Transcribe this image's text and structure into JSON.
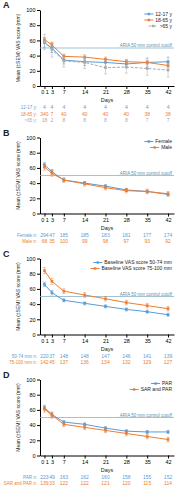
{
  "chart_data": [
    {
      "type": "line",
      "title": "A",
      "xlabel": "Days",
      "ylabel": "Mean (±SEM) VAS score (mm)",
      "x": [
        0.5,
        3,
        7,
        14,
        21,
        28,
        35,
        42
      ],
      "xlim": [
        -1,
        44
      ],
      "xticks": [
        {
          "value": 0.5,
          "label": "0 1"
        },
        3,
        7,
        14,
        21,
        28,
        35,
        42
      ],
      "ylim": [
        0,
        100
      ],
      "yticks": [
        0,
        20,
        40,
        60,
        80,
        100
      ],
      "grid": false,
      "legend": "upper right",
      "annotations": [
        {
          "text": "ARIA 50 mm control cutoff",
          "y": 50
        }
      ],
      "series": [
        {
          "name": "12-17 y",
          "color": "#5b9bd5",
          "line_style": "solid",
          "marker": "square",
          "values": [
            57,
            50,
            34,
            32,
            31,
            29,
            31,
            32
          ],
          "errors": [
            6,
            6,
            5,
            5,
            5,
            5,
            6,
            6
          ],
          "n_label": "12-17 y:",
          "n": [
            4,
            4,
            4,
            4,
            4,
            4,
            4,
            4
          ]
        },
        {
          "name": "18-65 y",
          "color": "#ed7d31",
          "line_style": "solid",
          "marker": "square",
          "values": [
            61,
            54,
            39,
            38,
            35,
            32,
            31,
            27
          ],
          "errors": [
            3,
            3,
            3,
            3,
            3,
            3,
            3,
            3
          ],
          "n_label": "18-65 y:",
          "n": [
            340,
            7,
            40,
            40,
            40,
            40,
            38,
            38
          ]
        },
        {
          "name": ">65 y",
          "color": "#aaaaaa",
          "line_style": "dashed",
          "marker": "square",
          "values": [
            58,
            48,
            33,
            31,
            24,
            25,
            23,
            21
          ],
          "errors": [
            10,
            10,
            8,
            8,
            8,
            8,
            9,
            9
          ],
          "n_label": ">65 y:",
          "n": [
            18,
            2,
            8,
            8,
            8,
            8,
            7,
            7
          ]
        }
      ]
    },
    {
      "type": "line",
      "title": "B",
      "xlabel": "Days",
      "ylabel": "Mean (±SEM) VAS score (mm)",
      "x": [
        0.5,
        3,
        7,
        14,
        21,
        28,
        35,
        42
      ],
      "xlim": [
        -1,
        44
      ],
      "xticks": [
        {
          "value": 0.5,
          "label": "0 1"
        },
        3,
        7,
        14,
        21,
        28,
        35,
        42
      ],
      "ylim": [
        0,
        100
      ],
      "yticks": [
        0,
        20,
        40,
        60,
        80,
        100
      ],
      "grid": false,
      "legend": "upper right",
      "annotations": [
        {
          "text": "ARIA 50 mm control cutoff",
          "y": 50
        }
      ],
      "series": [
        {
          "name": "Female",
          "color": "#5b9bd5",
          "line_style": "solid",
          "marker": "square",
          "values": [
            64,
            55,
            44,
            40,
            36,
            31,
            29,
            25
          ],
          "errors": [
            3,
            3,
            2,
            2,
            2,
            2,
            2,
            2
          ],
          "n_label": "Female n:",
          "n": [
            294,
            47,
            185,
            185,
            183,
            181,
            177,
            174
          ]
        },
        {
          "name": "Male",
          "color": "#ed7d31",
          "line_style": "solid",
          "marker": "square",
          "values": [
            61,
            53,
            44,
            39,
            34,
            30,
            29,
            26
          ],
          "errors": [
            4,
            4,
            3,
            3,
            3,
            3,
            3,
            3
          ],
          "n_label": "Male n:",
          "n": [
            68,
            35,
            100,
            99,
            98,
            97,
            93,
            92
          ]
        }
      ]
    },
    {
      "type": "line",
      "title": "C",
      "xlabel": "Days",
      "ylabel": "Mean (±SEM) VAS score (mm)",
      "x": [
        0.5,
        3,
        7,
        14,
        21,
        28,
        35,
        42
      ],
      "xlim": [
        -1,
        44
      ],
      "xticks": [
        {
          "value": 0.5,
          "label": "0 1"
        },
        3,
        7,
        14,
        21,
        28,
        35,
        42
      ],
      "ylim": [
        0,
        100
      ],
      "yticks": [
        0,
        20,
        40,
        60,
        80,
        100
      ],
      "grid": false,
      "legend": "upper right",
      "annotations": [
        {
          "text": "ARIA 50 mm control cutoff",
          "y": 50
        }
      ],
      "series": [
        {
          "name": "Baseline VAS score 50-74 mm",
          "color": "#5b9bd5",
          "line_style": "solid",
          "marker": "square",
          "values": [
            66,
            55,
            45,
            41,
            37,
            33,
            30,
            26
          ],
          "errors": [
            3,
            3,
            2,
            2,
            2,
            2,
            2,
            2
          ],
          "n_label": "50-74 mm n:",
          "n": [
            220,
            37,
            148,
            148,
            147,
            146,
            141,
            139
          ]
        },
        {
          "name": "Baseline VAS score 75-100 mm",
          "color": "#ed7d31",
          "line_style": "solid",
          "marker": "square",
          "values": [
            84,
            70,
            57,
            52,
            47,
            42,
            38,
            34
          ],
          "errors": [
            4,
            4,
            3,
            3,
            3,
            3,
            3,
            3
          ],
          "n_label": "75-100 mm n:",
          "n": [
            142,
            45,
            137,
            136,
            134,
            132,
            129,
            127
          ]
        }
      ]
    },
    {
      "type": "line",
      "title": "D",
      "xlabel": "Days",
      "ylabel": "Mean (±SEM) VAS score (mm)",
      "x": [
        0.5,
        3,
        7,
        14,
        21,
        28,
        35,
        42
      ],
      "xlim": [
        -1,
        44
      ],
      "xticks": [
        {
          "value": 0.5,
          "label": "0 1"
        },
        3,
        7,
        14,
        21,
        28,
        35,
        42
      ],
      "ylim": [
        0,
        100
      ],
      "yticks": [
        0,
        20,
        40,
        60,
        80,
        100
      ],
      "grid": false,
      "legend": "upper right",
      "annotations": [
        {
          "text": "ARIA 50 mm control cutoff",
          "y": 50
        }
      ],
      "series": [
        {
          "name": "PAR",
          "color": "#5b9bd5",
          "line_style": "solid",
          "marker": "square",
          "values": [
            63,
            54,
            44,
            41,
            36,
            32,
            31,
            31
          ],
          "errors": [
            3,
            3,
            2,
            2,
            2,
            2,
            2,
            2
          ],
          "n_label": "PAR n:",
          "n": [
            223,
            49,
            163,
            162,
            160,
            158,
            155,
            152
          ]
        },
        {
          "name": "SAR and PAR",
          "color": "#ed7d31",
          "line_style": "solid",
          "marker": "square",
          "values": [
            61,
            53,
            41,
            37,
            33,
            29,
            25,
            21
          ],
          "errors": [
            4,
            4,
            3,
            3,
            3,
            3,
            3,
            3
          ],
          "n_label": "SAR and PAR n:",
          "n": [
            139,
            33,
            122,
            122,
            121,
            120,
            115,
            114
          ]
        }
      ]
    }
  ]
}
